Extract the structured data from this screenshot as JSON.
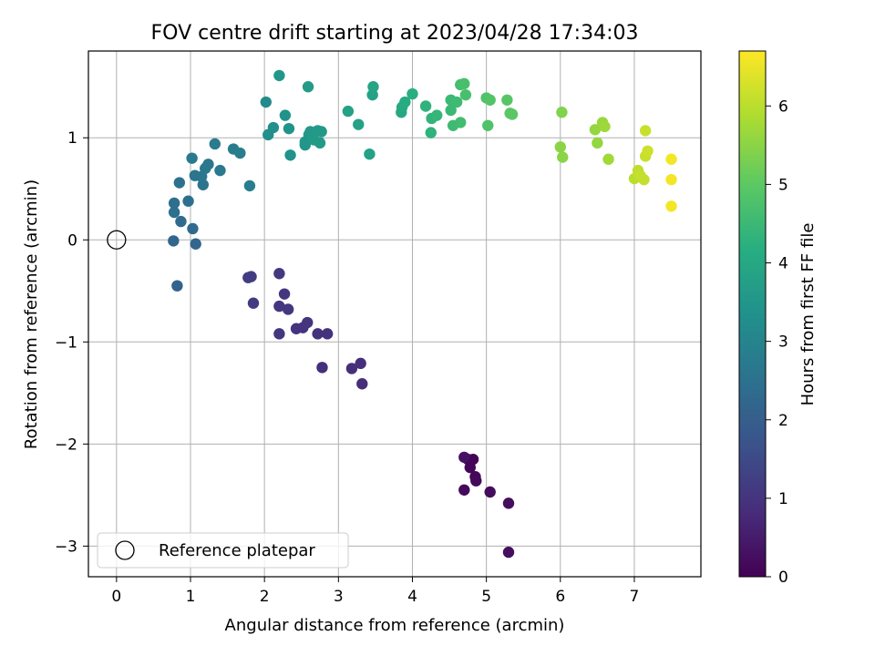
{
  "chart_data": {
    "type": "scatter",
    "title": "FOV centre drift starting at 2023/04/28 17:34:03",
    "xlabel": "Angular distance from reference (arcmin)",
    "ylabel": "Rotation from reference (arcmin)",
    "xlim": [
      -0.38,
      7.9
    ],
    "ylim": [
      -3.3,
      1.85
    ],
    "xticks": [
      0,
      1,
      2,
      3,
      4,
      5,
      6,
      7
    ],
    "yticks": [
      -3,
      -2,
      -1,
      0,
      1
    ],
    "grid": true,
    "legend": {
      "location": "lower-left",
      "entries": [
        "Reference platepar"
      ]
    },
    "reference_point": {
      "x": 0,
      "y": 0
    },
    "colorbar": {
      "label": "Hours from first FF file",
      "min": 0,
      "max": 6.7,
      "ticks": [
        0,
        1,
        2,
        3,
        4,
        5,
        6
      ],
      "colormap": "viridis"
    },
    "points": [
      {
        "x": 4.75,
        "y": -2.15,
        "c": 0.05
      },
      {
        "x": 4.82,
        "y": -2.15,
        "c": 0.08
      },
      {
        "x": 4.78,
        "y": -2.23,
        "c": 0.1
      },
      {
        "x": 4.85,
        "y": -2.32,
        "c": 0.12
      },
      {
        "x": 4.86,
        "y": -2.36,
        "c": 0.15
      },
      {
        "x": 4.7,
        "y": -2.45,
        "c": 0.18
      },
      {
        "x": 5.05,
        "y": -2.47,
        "c": 0.2
      },
      {
        "x": 5.3,
        "y": -2.58,
        "c": 0.22
      },
      {
        "x": 5.3,
        "y": -3.06,
        "c": 0.25
      },
      {
        "x": 4.7,
        "y": -2.13,
        "c": 0.3
      },
      {
        "x": 3.32,
        "y": -1.41,
        "c": 0.85
      },
      {
        "x": 3.3,
        "y": -1.21,
        "c": 0.85
      },
      {
        "x": 3.18,
        "y": -1.26,
        "c": 0.85
      },
      {
        "x": 2.78,
        "y": -1.25,
        "c": 0.88
      },
      {
        "x": 2.85,
        "y": -0.92,
        "c": 0.95
      },
      {
        "x": 2.72,
        "y": -0.92,
        "c": 0.95
      },
      {
        "x": 2.58,
        "y": -0.81,
        "c": 1.0
      },
      {
        "x": 2.52,
        "y": -0.86,
        "c": 1.0
      },
      {
        "x": 2.43,
        "y": -0.87,
        "c": 1.0
      },
      {
        "x": 2.2,
        "y": -0.92,
        "c": 1.05
      },
      {
        "x": 2.32,
        "y": -0.68,
        "c": 1.05
      },
      {
        "x": 2.2,
        "y": -0.65,
        "c": 1.05
      },
      {
        "x": 2.27,
        "y": -0.53,
        "c": 1.05
      },
      {
        "x": 1.85,
        "y": -0.62,
        "c": 1.15
      },
      {
        "x": 1.78,
        "y": -0.37,
        "c": 1.2
      },
      {
        "x": 1.82,
        "y": -0.36,
        "c": 1.2
      },
      {
        "x": 2.2,
        "y": -0.33,
        "c": 1.1
      },
      {
        "x": 0.82,
        "y": -0.45,
        "c": 2.1
      },
      {
        "x": 0.77,
        "y": -0.01,
        "c": 2.2
      },
      {
        "x": 1.07,
        "y": -0.04,
        "c": 2.2
      },
      {
        "x": 0.87,
        "y": 0.18,
        "c": 2.3
      },
      {
        "x": 1.03,
        "y": 0.11,
        "c": 2.3
      },
      {
        "x": 0.78,
        "y": 0.27,
        "c": 2.4
      },
      {
        "x": 0.78,
        "y": 0.36,
        "c": 2.4
      },
      {
        "x": 0.97,
        "y": 0.38,
        "c": 2.45
      },
      {
        "x": 0.85,
        "y": 0.56,
        "c": 2.5
      },
      {
        "x": 1.17,
        "y": 0.54,
        "c": 2.55
      },
      {
        "x": 1.06,
        "y": 0.63,
        "c": 2.6
      },
      {
        "x": 1.15,
        "y": 0.62,
        "c": 2.6
      },
      {
        "x": 1.2,
        "y": 0.7,
        "c": 2.65
      },
      {
        "x": 1.24,
        "y": 0.74,
        "c": 2.65
      },
      {
        "x": 1.4,
        "y": 0.68,
        "c": 2.7
      },
      {
        "x": 1.02,
        "y": 0.8,
        "c": 2.7
      },
      {
        "x": 1.33,
        "y": 0.94,
        "c": 2.75
      },
      {
        "x": 1.58,
        "y": 0.89,
        "c": 2.8
      },
      {
        "x": 1.67,
        "y": 0.85,
        "c": 2.85
      },
      {
        "x": 1.8,
        "y": 0.53,
        "c": 2.85
      },
      {
        "x": 2.02,
        "y": 1.35,
        "c": 3.2
      },
      {
        "x": 2.2,
        "y": 1.61,
        "c": 3.5
      },
      {
        "x": 2.05,
        "y": 1.03,
        "c": 3.3
      },
      {
        "x": 2.12,
        "y": 1.1,
        "c": 3.3
      },
      {
        "x": 2.28,
        "y": 1.22,
        "c": 3.4
      },
      {
        "x": 2.33,
        "y": 1.09,
        "c": 3.4
      },
      {
        "x": 2.35,
        "y": 0.83,
        "c": 3.4
      },
      {
        "x": 2.55,
        "y": 0.93,
        "c": 3.5
      },
      {
        "x": 2.55,
        "y": 0.96,
        "c": 3.5
      },
      {
        "x": 2.6,
        "y": 1.03,
        "c": 3.55
      },
      {
        "x": 2.62,
        "y": 1.06,
        "c": 3.55
      },
      {
        "x": 2.67,
        "y": 0.98,
        "c": 3.6
      },
      {
        "x": 2.72,
        "y": 1.07,
        "c": 3.6
      },
      {
        "x": 2.77,
        "y": 1.06,
        "c": 3.6
      },
      {
        "x": 2.75,
        "y": 0.95,
        "c": 3.6
      },
      {
        "x": 2.59,
        "y": 1.5,
        "c": 3.65
      },
      {
        "x": 3.13,
        "y": 1.26,
        "c": 3.8
      },
      {
        "x": 3.27,
        "y": 1.13,
        "c": 3.85
      },
      {
        "x": 3.42,
        "y": 0.84,
        "c": 3.85
      },
      {
        "x": 3.46,
        "y": 1.42,
        "c": 3.85
      },
      {
        "x": 3.47,
        "y": 1.5,
        "c": 3.9
      },
      {
        "x": 3.85,
        "y": 1.25,
        "c": 4.0
      },
      {
        "x": 3.86,
        "y": 1.3,
        "c": 4.05
      },
      {
        "x": 3.9,
        "y": 1.35,
        "c": 4.1
      },
      {
        "x": 4.0,
        "y": 1.43,
        "c": 4.2
      },
      {
        "x": 4.18,
        "y": 1.31,
        "c": 4.3
      },
      {
        "x": 4.25,
        "y": 1.05,
        "c": 4.3
      },
      {
        "x": 4.26,
        "y": 1.19,
        "c": 4.35
      },
      {
        "x": 4.33,
        "y": 1.22,
        "c": 4.4
      },
      {
        "x": 4.52,
        "y": 1.27,
        "c": 4.5
      },
      {
        "x": 4.52,
        "y": 1.37,
        "c": 4.5
      },
      {
        "x": 4.55,
        "y": 1.12,
        "c": 4.55
      },
      {
        "x": 4.6,
        "y": 1.35,
        "c": 4.55
      },
      {
        "x": 4.65,
        "y": 1.15,
        "c": 4.6
      },
      {
        "x": 4.65,
        "y": 1.52,
        "c": 4.65
      },
      {
        "x": 4.7,
        "y": 1.53,
        "c": 4.7
      },
      {
        "x": 4.72,
        "y": 1.42,
        "c": 4.7
      },
      {
        "x": 5.0,
        "y": 1.39,
        "c": 4.8
      },
      {
        "x": 5.02,
        "y": 1.12,
        "c": 4.8
      },
      {
        "x": 5.05,
        "y": 1.37,
        "c": 4.85
      },
      {
        "x": 5.28,
        "y": 1.37,
        "c": 4.9
      },
      {
        "x": 5.32,
        "y": 1.24,
        "c": 4.95
      },
      {
        "x": 5.35,
        "y": 1.23,
        "c": 4.95
      },
      {
        "x": 6.02,
        "y": 1.25,
        "c": 5.4
      },
      {
        "x": 6.0,
        "y": 0.91,
        "c": 5.5
      },
      {
        "x": 6.03,
        "y": 0.81,
        "c": 5.5
      },
      {
        "x": 6.47,
        "y": 1.08,
        "c": 5.6
      },
      {
        "x": 6.5,
        "y": 0.95,
        "c": 5.6
      },
      {
        "x": 6.57,
        "y": 1.15,
        "c": 5.65
      },
      {
        "x": 6.6,
        "y": 1.11,
        "c": 5.7
      },
      {
        "x": 6.65,
        "y": 0.79,
        "c": 5.75
      },
      {
        "x": 7.0,
        "y": 0.6,
        "c": 6.0
      },
      {
        "x": 7.05,
        "y": 0.68,
        "c": 6.05
      },
      {
        "x": 7.08,
        "y": 0.63,
        "c": 6.1
      },
      {
        "x": 7.13,
        "y": 0.59,
        "c": 6.1
      },
      {
        "x": 7.15,
        "y": 0.82,
        "c": 6.15
      },
      {
        "x": 7.15,
        "y": 1.07,
        "c": 6.15
      },
      {
        "x": 7.18,
        "y": 0.87,
        "c": 6.2
      },
      {
        "x": 7.5,
        "y": 0.79,
        "c": 6.6
      },
      {
        "x": 7.5,
        "y": 0.59,
        "c": 6.6
      },
      {
        "x": 7.5,
        "y": 0.33,
        "c": 6.6
      }
    ]
  }
}
